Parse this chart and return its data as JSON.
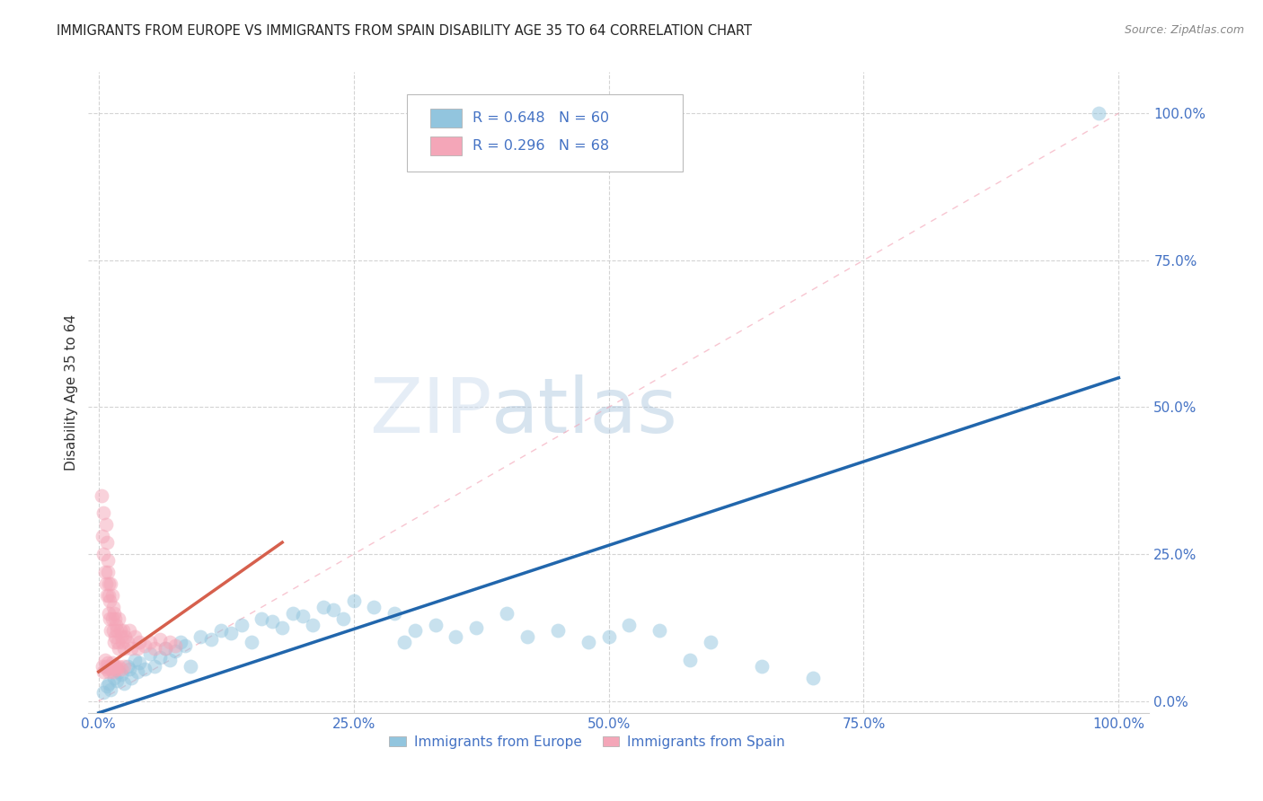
{
  "title": "IMMIGRANTS FROM EUROPE VS IMMIGRANTS FROM SPAIN DISABILITY AGE 35 TO 64 CORRELATION CHART",
  "source": "Source: ZipAtlas.com",
  "ylabel": "Disability Age 35 to 64",
  "x_tick_labels": [
    "0.0%",
    "25.0%",
    "50.0%",
    "75.0%",
    "100.0%"
  ],
  "y_tick_labels": [
    "0.0%",
    "25.0%",
    "50.0%",
    "75.0%",
    "100.0%"
  ],
  "x_tick_vals": [
    0,
    25,
    50,
    75,
    100
  ],
  "y_tick_vals": [
    0,
    25,
    50,
    75,
    100
  ],
  "blue_R": 0.648,
  "blue_N": 60,
  "pink_R": 0.296,
  "pink_N": 68,
  "blue_color": "#92c5de",
  "pink_color": "#f4a6b8",
  "blue_line_color": "#2166ac",
  "pink_line_color": "#d6604d",
  "diag_dash_color": "#f4a6b8",
  "blue_legend_label": "Immigrants from Europe",
  "pink_legend_label": "Immigrants from Spain",
  "watermark_zip": "ZIP",
  "watermark_atlas": "atlas",
  "background_color": "#ffffff",
  "grid_color": "#d0d0d0",
  "title_color": "#222222",
  "tick_color": "#4472c4",
  "blue_scatter": [
    [
      0.5,
      1.5
    ],
    [
      0.8,
      2.5
    ],
    [
      1.0,
      3.0
    ],
    [
      1.2,
      2.0
    ],
    [
      1.5,
      4.0
    ],
    [
      1.8,
      3.5
    ],
    [
      2.0,
      5.0
    ],
    [
      2.2,
      4.5
    ],
    [
      2.5,
      3.0
    ],
    [
      2.8,
      6.0
    ],
    [
      3.0,
      5.5
    ],
    [
      3.2,
      4.0
    ],
    [
      3.5,
      7.0
    ],
    [
      3.8,
      5.0
    ],
    [
      4.0,
      6.5
    ],
    [
      4.5,
      5.5
    ],
    [
      5.0,
      8.0
    ],
    [
      5.5,
      6.0
    ],
    [
      6.0,
      7.5
    ],
    [
      6.5,
      9.0
    ],
    [
      7.0,
      7.0
    ],
    [
      7.5,
      8.5
    ],
    [
      8.0,
      10.0
    ],
    [
      8.5,
      9.5
    ],
    [
      9.0,
      6.0
    ],
    [
      10.0,
      11.0
    ],
    [
      11.0,
      10.5
    ],
    [
      12.0,
      12.0
    ],
    [
      13.0,
      11.5
    ],
    [
      14.0,
      13.0
    ],
    [
      15.0,
      10.0
    ],
    [
      16.0,
      14.0
    ],
    [
      17.0,
      13.5
    ],
    [
      18.0,
      12.5
    ],
    [
      19.0,
      15.0
    ],
    [
      20.0,
      14.5
    ],
    [
      21.0,
      13.0
    ],
    [
      22.0,
      16.0
    ],
    [
      23.0,
      15.5
    ],
    [
      24.0,
      14.0
    ],
    [
      25.0,
      17.0
    ],
    [
      27.0,
      16.0
    ],
    [
      29.0,
      15.0
    ],
    [
      30.0,
      10.0
    ],
    [
      31.0,
      12.0
    ],
    [
      33.0,
      13.0
    ],
    [
      35.0,
      11.0
    ],
    [
      37.0,
      12.5
    ],
    [
      40.0,
      15.0
    ],
    [
      42.0,
      11.0
    ],
    [
      45.0,
      12.0
    ],
    [
      48.0,
      10.0
    ],
    [
      50.0,
      11.0
    ],
    [
      52.0,
      13.0
    ],
    [
      55.0,
      12.0
    ],
    [
      58.0,
      7.0
    ],
    [
      60.0,
      10.0
    ],
    [
      65.0,
      6.0
    ],
    [
      70.0,
      4.0
    ],
    [
      98.0,
      100.0
    ]
  ],
  "pink_scatter": [
    [
      0.3,
      35.0
    ],
    [
      0.4,
      28.0
    ],
    [
      0.5,
      32.0
    ],
    [
      0.5,
      25.0
    ],
    [
      0.6,
      22.0
    ],
    [
      0.7,
      30.0
    ],
    [
      0.7,
      20.0
    ],
    [
      0.8,
      27.0
    ],
    [
      0.8,
      18.0
    ],
    [
      0.9,
      24.0
    ],
    [
      0.9,
      22.0
    ],
    [
      1.0,
      20.0
    ],
    [
      1.0,
      15.0
    ],
    [
      1.0,
      18.0
    ],
    [
      1.1,
      17.0
    ],
    [
      1.1,
      14.0
    ],
    [
      1.2,
      20.0
    ],
    [
      1.2,
      12.0
    ],
    [
      1.3,
      18.0
    ],
    [
      1.3,
      14.0
    ],
    [
      1.4,
      16.0
    ],
    [
      1.4,
      12.0
    ],
    [
      1.5,
      15.0
    ],
    [
      1.5,
      10.0
    ],
    [
      1.6,
      14.0
    ],
    [
      1.6,
      11.0
    ],
    [
      1.7,
      13.0
    ],
    [
      1.8,
      12.0
    ],
    [
      1.9,
      10.0
    ],
    [
      2.0,
      14.0
    ],
    [
      2.0,
      9.0
    ],
    [
      2.1,
      12.0
    ],
    [
      2.2,
      11.0
    ],
    [
      2.3,
      10.0
    ],
    [
      2.4,
      12.0
    ],
    [
      2.5,
      9.0
    ],
    [
      2.6,
      11.0
    ],
    [
      2.8,
      10.0
    ],
    [
      3.0,
      12.0
    ],
    [
      3.2,
      9.0
    ],
    [
      3.5,
      11.0
    ],
    [
      3.8,
      9.0
    ],
    [
      4.0,
      10.0
    ],
    [
      4.5,
      9.5
    ],
    [
      5.0,
      10.0
    ],
    [
      5.5,
      9.0
    ],
    [
      6.0,
      10.5
    ],
    [
      6.5,
      9.0
    ],
    [
      7.0,
      10.0
    ],
    [
      7.5,
      9.5
    ],
    [
      0.4,
      6.0
    ],
    [
      0.5,
      5.0
    ],
    [
      0.6,
      7.0
    ],
    [
      0.7,
      6.0
    ],
    [
      0.8,
      5.5
    ],
    [
      0.9,
      6.5
    ],
    [
      1.0,
      5.0
    ],
    [
      1.1,
      6.0
    ],
    [
      1.2,
      5.5
    ],
    [
      1.3,
      6.5
    ],
    [
      1.4,
      5.0
    ],
    [
      1.5,
      6.0
    ],
    [
      1.6,
      5.5
    ],
    [
      1.7,
      6.0
    ],
    [
      1.8,
      5.5
    ],
    [
      2.0,
      6.0
    ],
    [
      2.2,
      5.5
    ],
    [
      2.5,
      6.0
    ]
  ],
  "blue_line": [
    [
      0,
      0
    ],
    [
      100,
      55
    ]
  ],
  "pink_line": [
    [
      0,
      5
    ],
    [
      15,
      25
    ]
  ]
}
